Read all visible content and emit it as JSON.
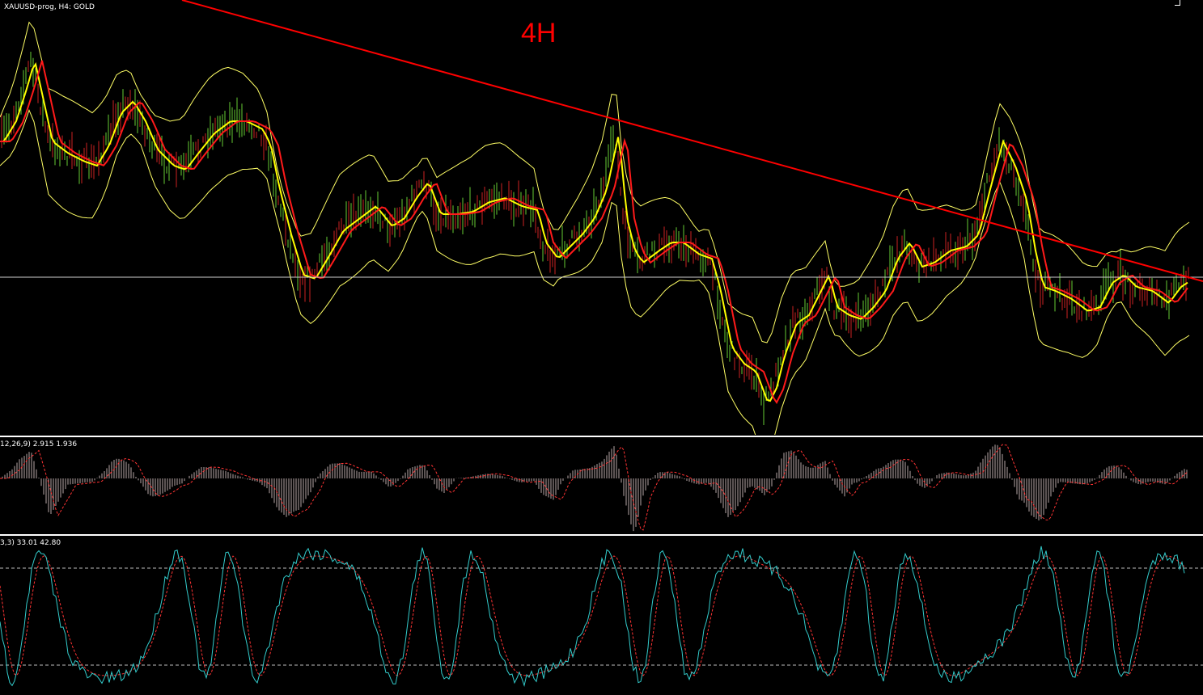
{
  "chart": {
    "symbol_label": "XAUUSD-prog, H4:  GOLD",
    "timeframe_annotation": "4H",
    "colors": {
      "background": "#000000",
      "trendline": "#ff0000",
      "ma_fast": "#ffff00",
      "ma_slow": "#ff1a1a",
      "bands": "#ffff66",
      "bar_up": "#66cc33",
      "bar_down": "#cc2222",
      "hline": "#cfcfcf"
    }
  },
  "macd": {
    "label": "12,26,9) 2.915 1.936",
    "colors": {
      "histogram": "#b8a8a8",
      "signal": "#ff3333"
    }
  },
  "stochastic": {
    "label": "3,3) 33.01 42.80",
    "colors": {
      "main": "#33cccc",
      "signal": "#ff3333",
      "levels": "#bbbbbb"
    }
  }
}
